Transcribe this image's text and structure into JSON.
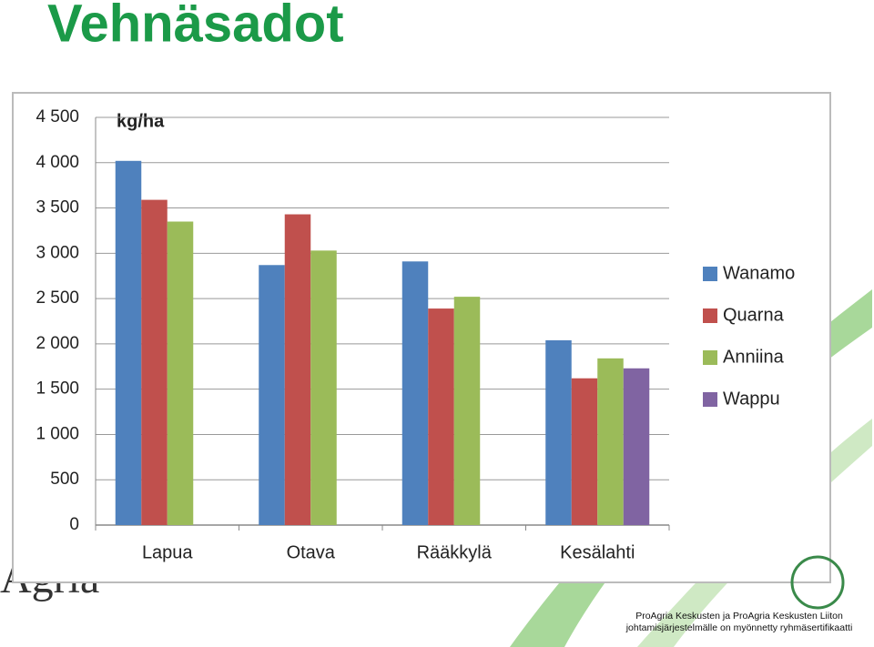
{
  "title": "Vehnäsadot",
  "logo": "Agria",
  "footer": {
    "lines": [
      "ProAgria Keskusten ja ProAgria Keskusten Liiton",
      "johtamisjärjestelmälle on myönnetty ryhmäsertifikaatti"
    ]
  },
  "chart_data": {
    "type": "bar",
    "y_label": "kg/ha",
    "categories": [
      "Lapua",
      "Otava",
      "Rääkkylä",
      "Kesälahti"
    ],
    "series": [
      {
        "name": "Wanamo",
        "color": "#4f81bd",
        "values": [
          4020,
          2870,
          2910,
          2040
        ]
      },
      {
        "name": "Quarna",
        "color": "#c0504d",
        "values": [
          3590,
          3430,
          2390,
          1620
        ]
      },
      {
        "name": "Anniina",
        "color": "#9bbb59",
        "values": [
          3350,
          3030,
          2520,
          1840
        ]
      },
      {
        "name": "Wappu",
        "color": "#8064a2",
        "values": [
          null,
          null,
          null,
          1730
        ]
      }
    ],
    "ylim": [
      0,
      4500
    ],
    "yticks": [
      0,
      500,
      {
        "value": 1000,
        "label": "1 000"
      },
      {
        "value": 1500,
        "label": "1 500"
      },
      {
        "value": 2000,
        "label": "2 000"
      },
      {
        "value": 2500,
        "label": "2 500"
      },
      {
        "value": 3000,
        "label": "3 000"
      },
      {
        "value": 3500,
        "label": "3 500"
      },
      {
        "value": 4000,
        "label": "4 000"
      },
      {
        "value": 4500,
        "label": "4 500"
      }
    ],
    "grid": true,
    "legend": "right"
  }
}
